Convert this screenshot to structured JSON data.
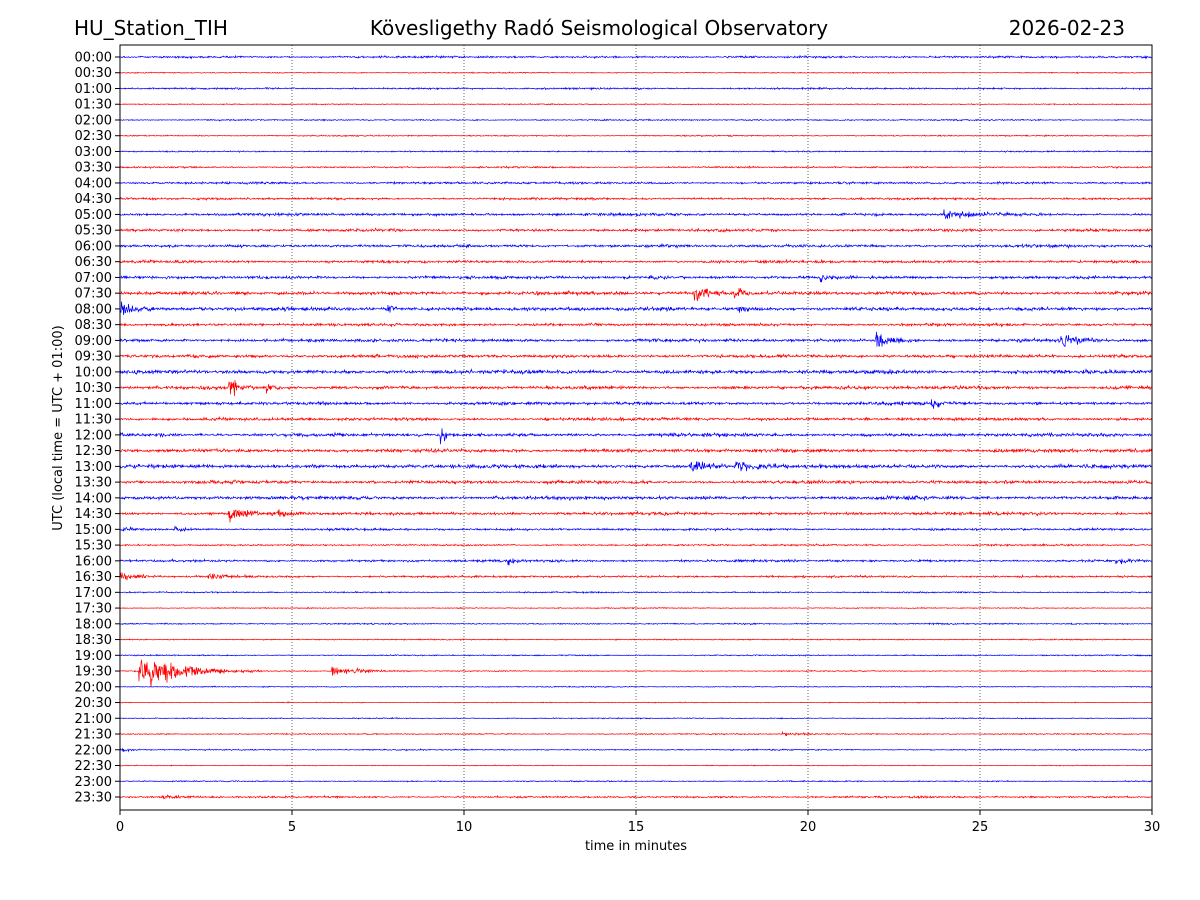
{
  "chart_data": {
    "type": "line",
    "title_left": "HU_Station_TIH",
    "title": "Kövesligethy Radó Seismological Observatory",
    "title_right": "2026-02-23",
    "xlabel": "time in minutes",
    "ylabel": "UTC (local time = UTC + 01:00)",
    "xlim": [
      0,
      30
    ],
    "xticks": [
      "0",
      "5",
      "10",
      "15",
      "20",
      "25",
      "30"
    ],
    "grid": "vertical dotted",
    "colors": [
      "#0000ff",
      "#ff0000"
    ],
    "rows": [
      "00:00",
      "00:30",
      "01:00",
      "01:30",
      "02:00",
      "02:30",
      "03:00",
      "03:30",
      "04:00",
      "04:30",
      "05:00",
      "05:30",
      "06:00",
      "06:30",
      "07:00",
      "07:30",
      "08:00",
      "08:30",
      "09:00",
      "09:30",
      "10:00",
      "10:30",
      "11:00",
      "11:30",
      "12:00",
      "12:30",
      "13:00",
      "13:30",
      "14:00",
      "14:30",
      "15:00",
      "15:30",
      "16:00",
      "16:30",
      "17:00",
      "17:30",
      "18:00",
      "18:30",
      "19:00",
      "19:30",
      "20:00",
      "20:30",
      "21:00",
      "21:30",
      "22:00",
      "22:30",
      "23:00",
      "23:30"
    ],
    "noise_level": [
      1.2,
      0.6,
      1.0,
      0.6,
      0.8,
      0.7,
      0.8,
      0.9,
      1.3,
      1.3,
      1.6,
      1.6,
      1.6,
      1.5,
      1.7,
      2.0,
      2.0,
      1.6,
      1.8,
      1.8,
      2.2,
      2.0,
      1.8,
      1.7,
      1.9,
      2.0,
      2.2,
      1.9,
      2.0,
      1.8,
      1.3,
      1.0,
      1.3,
      1.2,
      0.8,
      0.6,
      0.8,
      0.7,
      0.7,
      0.6,
      0.6,
      0.5,
      0.6,
      0.7,
      0.7,
      0.5,
      0.7,
      1.1
    ],
    "events": [
      {
        "row": 10,
        "minute": 24.0,
        "amplitude": 5,
        "duration": 2.5
      },
      {
        "row": 14,
        "minute": 15.4,
        "amplitude": 4,
        "duration": 1.0
      },
      {
        "row": 14,
        "minute": 20.4,
        "amplitude": 4,
        "duration": 0.5
      },
      {
        "row": 15,
        "minute": 16.7,
        "amplitude": 10,
        "duration": 1.5
      },
      {
        "row": 15,
        "minute": 17.9,
        "amplitude": 7,
        "duration": 1.0
      },
      {
        "row": 16,
        "minute": 0.0,
        "amplitude": 8,
        "duration": 1.5
      },
      {
        "row": 16,
        "minute": 7.8,
        "amplitude": 6,
        "duration": 0.6
      },
      {
        "row": 16,
        "minute": 18.0,
        "amplitude": 4,
        "duration": 1.0
      },
      {
        "row": 18,
        "minute": 22.0,
        "amplitude": 12,
        "duration": 1.2
      },
      {
        "row": 18,
        "minute": 27.4,
        "amplitude": 10,
        "duration": 1.2
      },
      {
        "row": 21,
        "minute": 3.2,
        "amplitude": 12,
        "duration": 0.8
      },
      {
        "row": 21,
        "minute": 4.3,
        "amplitude": 5,
        "duration": 0.6
      },
      {
        "row": 22,
        "minute": 23.6,
        "amplitude": 8,
        "duration": 0.5
      },
      {
        "row": 24,
        "minute": 9.35,
        "amplitude": 11,
        "duration": 0.5
      },
      {
        "row": 26,
        "minute": 16.6,
        "amplitude": 9,
        "duration": 1.2
      },
      {
        "row": 26,
        "minute": 17.9,
        "amplitude": 6,
        "duration": 1.5
      },
      {
        "row": 29,
        "minute": 3.2,
        "amplitude": 10,
        "duration": 1.3
      },
      {
        "row": 29,
        "minute": 4.6,
        "amplitude": 6,
        "duration": 0.8
      },
      {
        "row": 30,
        "minute": 0.0,
        "amplitude": 4,
        "duration": 0.8
      },
      {
        "row": 30,
        "minute": 1.6,
        "amplitude": 4,
        "duration": 0.8
      },
      {
        "row": 32,
        "minute": 11.3,
        "amplitude": 6,
        "duration": 0.5
      },
      {
        "row": 32,
        "minute": 29.0,
        "amplitude": 4,
        "duration": 1.0
      },
      {
        "row": 33,
        "minute": 0.0,
        "amplitude": 5,
        "duration": 1.2
      },
      {
        "row": 33,
        "minute": 2.6,
        "amplitude": 4,
        "duration": 1.5
      },
      {
        "row": 39,
        "minute": 0.6,
        "amplitude": 26,
        "duration": 3.5
      },
      {
        "row": 39,
        "minute": 6.2,
        "amplitude": 6,
        "duration": 2.5
      },
      {
        "row": 43,
        "minute": 19.3,
        "amplitude": 3,
        "duration": 1.5
      },
      {
        "row": 44,
        "minute": 0.0,
        "amplitude": 3,
        "duration": 0.6
      },
      {
        "row": 47,
        "minute": 1.2,
        "amplitude": 2,
        "duration": 2.0
      }
    ]
  }
}
